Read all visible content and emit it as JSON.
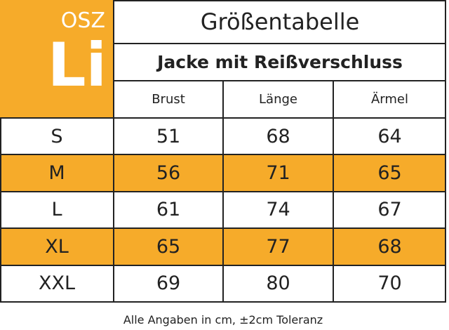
{
  "logo": {
    "top": "OSZ",
    "main": "Li"
  },
  "title": "Größentabelle",
  "subtitle": "Jacke mit Reißverschluss",
  "table": {
    "header": [
      "Brust",
      "Länge",
      "Ärmel"
    ],
    "rows": [
      [
        "S",
        51,
        68,
        64
      ],
      [
        "M",
        56,
        71,
        65
      ],
      [
        "L",
        61,
        74,
        67
      ],
      [
        "XL",
        65,
        77,
        68
      ],
      [
        "XXL",
        69,
        80,
        70
      ]
    ]
  },
  "footer": "Alle Angaben in cm, ±2cm Toleranz"
}
